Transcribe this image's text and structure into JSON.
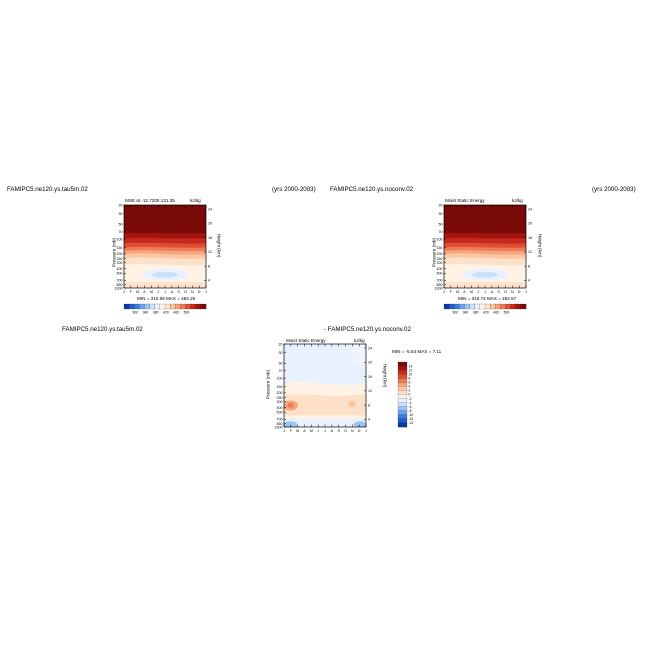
{
  "panels": [
    {
      "case_name": "FAMIPC5.ne120.ys.tau5m.02",
      "years": "(yrs 2000-2003)",
      "plot_title": "MSE at -12.7205,131.35",
      "units": "kJ/kg",
      "stats": "MIN = 310.69  MAX = 484.26",
      "ylabel": "Pressure (mb)",
      "y2label": "Height (km)"
    },
    {
      "case_name": "FAMIPC5.ne120.ys.noconv.02",
      "years": "(yrs 2000-2003)",
      "plot_title": "Moist Static Energy",
      "units": "kJ/kg",
      "stats": "MIN = 316.74  MAX = 484.57",
      "ylabel": "Pressure (mb)",
      "y2label": "Height (km)"
    },
    {
      "case_name": "FAMIPC5.ne120.ys.tau5m.02",
      "case_name2": "-  FAMIPC5.ne120.ys.noconv.02",
      "plot_title": "Moist Static Energy",
      "units": "kJ/kg",
      "stats": "MIN =  -5.64  MAX =   7.11",
      "ylabel": "Pressure (mb)",
      "y2label": "Height (km)"
    }
  ],
  "chart_data": [
    {
      "type": "heatmap",
      "title": "MSE at -12.7205,131.35",
      "xlabel": "",
      "ylabel": "Pressure (mb)",
      "y2label": "Height (km)",
      "x_ticks": [
        "J",
        "F",
        "M",
        "A",
        "M",
        "J",
        "J",
        "A",
        "S",
        "O",
        "N",
        "D",
        "J"
      ],
      "y_ticks": [
        "20",
        "30",
        "50",
        "70",
        "100",
        "150",
        "200",
        "250",
        "300",
        "400",
        "500",
        "700",
        "850",
        "1000"
      ],
      "y2_ticks": [
        "24",
        "20",
        "16",
        "12",
        "8",
        "4"
      ],
      "colorbar_labels": [
        "300",
        "320",
        "340",
        "360",
        "380",
        "400",
        "420",
        "440",
        "460",
        "480",
        "500"
      ],
      "colorbar_colors": [
        "#0a3a9e",
        "#1f5ec8",
        "#3a7fe0",
        "#6aa0ee",
        "#9cc2f6",
        "#cde0fb",
        "#e8f1fd",
        "#fff3e6",
        "#fde0c8",
        "#fbc6a2",
        "#f6a47c",
        "#ee7a56",
        "#de4e32",
        "#c52a1c",
        "#a11410",
        "#7a0a08"
      ],
      "min": 310.69,
      "max": 484.26,
      "units": "kJ/kg"
    },
    {
      "type": "heatmap",
      "title": "Moist Static Energy",
      "xlabel": "",
      "ylabel": "Pressure (mb)",
      "y2label": "Height (km)",
      "x_ticks": [
        "J",
        "F",
        "M",
        "A",
        "M",
        "J",
        "J",
        "A",
        "S",
        "O",
        "N",
        "D",
        "J"
      ],
      "y_ticks": [
        "20",
        "30",
        "50",
        "70",
        "100",
        "150",
        "200",
        "250",
        "300",
        "400",
        "500",
        "700",
        "850",
        "1000"
      ],
      "y2_ticks": [
        "24",
        "20",
        "16",
        "12",
        "8",
        "4"
      ],
      "colorbar_labels": [
        "300",
        "320",
        "340",
        "360",
        "380",
        "400",
        "420",
        "440",
        "460",
        "480",
        "500"
      ],
      "colorbar_colors": [
        "#0a3a9e",
        "#1f5ec8",
        "#3a7fe0",
        "#6aa0ee",
        "#9cc2f6",
        "#cde0fb",
        "#e8f1fd",
        "#fff3e6",
        "#fde0c8",
        "#fbc6a2",
        "#f6a47c",
        "#ee7a56",
        "#de4e32",
        "#c52a1c",
        "#a11410",
        "#7a0a08"
      ],
      "min": 316.74,
      "max": 484.57,
      "units": "kJ/kg"
    },
    {
      "type": "heatmap",
      "title": "Moist Static Energy",
      "xlabel": "",
      "ylabel": "Pressure (mb)",
      "y2label": "Height (km)",
      "x_ticks": [
        "J",
        "F",
        "M",
        "A",
        "M",
        "J",
        "J",
        "A",
        "S",
        "O",
        "N",
        "D",
        "J"
      ],
      "y_ticks": [
        "20",
        "30",
        "50",
        "70",
        "100",
        "150",
        "200",
        "250",
        "300",
        "400",
        "500",
        "700",
        "850",
        "1000"
      ],
      "y2_ticks": [
        "24",
        "20",
        "16",
        "12",
        "8",
        "4"
      ],
      "colorbar_labels": [
        "14",
        "12",
        "10",
        "8",
        "6",
        "4",
        "2",
        "0",
        "-2",
        "-4",
        "-6",
        "-8",
        "-10",
        "-12",
        "-14"
      ],
      "colorbar_colors": [
        "#7a0a08",
        "#a11410",
        "#c52a1c",
        "#de4e32",
        "#ee7a56",
        "#f6a47c",
        "#fbc6a2",
        "#fde0c8",
        "#fff3e6",
        "#e8f1fd",
        "#cde0fb",
        "#9cc2f6",
        "#6aa0ee",
        "#3a7fe0",
        "#1f5ec8",
        "#0a3a9e"
      ],
      "min": -5.64,
      "max": 7.11,
      "units": "kJ/kg"
    }
  ]
}
